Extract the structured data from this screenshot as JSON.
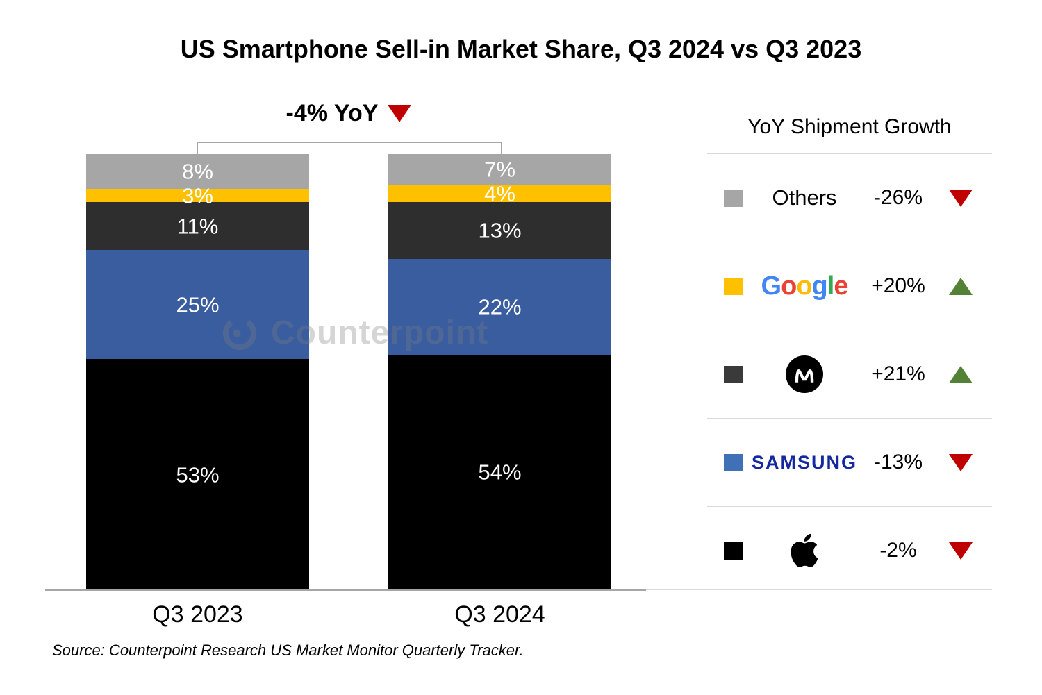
{
  "title": "US Smartphone Sell-in Market Share, Q3 2024 vs Q3 2023",
  "annotation": {
    "label": "-4% YoY",
    "direction": "down"
  },
  "watermark": {
    "text": "Counterpoint"
  },
  "source": "Source: Counterpoint Research US Market Monitor Quarterly Tracker.",
  "chart_data": {
    "type": "bar",
    "stacked": true,
    "unit": "%",
    "categories": [
      "Q3 2023",
      "Q3 2024"
    ],
    "series": [
      {
        "name": "Apple",
        "color": "#000000",
        "values": [
          53,
          54
        ]
      },
      {
        "name": "Samsung",
        "color": "#3A5DA0",
        "values": [
          25,
          22
        ]
      },
      {
        "name": "Motorola",
        "color": "#2E2E2E",
        "values": [
          11,
          13
        ]
      },
      {
        "name": "Google",
        "color": "#FFC000",
        "values": [
          3,
          4
        ]
      },
      {
        "name": "Others",
        "color": "#A6A6A6",
        "values": [
          8,
          7
        ]
      }
    ],
    "order_bottom_to_top": [
      "Apple",
      "Samsung",
      "Motorola",
      "Google",
      "Others"
    ],
    "ylim": [
      0,
      100
    ],
    "grid": false,
    "legend_position": "right",
    "total_change_label": "-4% YoY"
  },
  "legend": {
    "header": "YoY Shipment Growth",
    "rows": [
      {
        "brand": "Others",
        "label": "Others",
        "swatch": "#A6A6A6",
        "change": "-26%",
        "direction": "down"
      },
      {
        "brand": "Google",
        "label": "Google",
        "swatch": "#FFC000",
        "change": "+20%",
        "direction": "up"
      },
      {
        "brand": "Motorola",
        "label": "",
        "swatch": "#3A3A3A",
        "change": "+21%",
        "direction": "up"
      },
      {
        "brand": "Samsung",
        "label": "SAMSUNG",
        "swatch": "#4070B5",
        "change": "-13%",
        "direction": "down"
      },
      {
        "brand": "Apple",
        "label": "",
        "swatch": "#000000",
        "change": "-2%",
        "direction": "down"
      }
    ],
    "google_letters": [
      {
        "ch": "G",
        "color": "#4285F4"
      },
      {
        "ch": "o",
        "color": "#EA4335"
      },
      {
        "ch": "o",
        "color": "#FBBC05"
      },
      {
        "ch": "g",
        "color": "#4285F4"
      },
      {
        "ch": "l",
        "color": "#34A853"
      },
      {
        "ch": "e",
        "color": "#EA4335"
      }
    ]
  },
  "colors": {
    "up_triangle": "#538135",
    "down_triangle": "#C00000",
    "axis": "#A6A6A6",
    "divider": "#D9D9D9",
    "samsung_wordmark": "#1428A0",
    "bar_label_text": "#FFFFFF"
  }
}
